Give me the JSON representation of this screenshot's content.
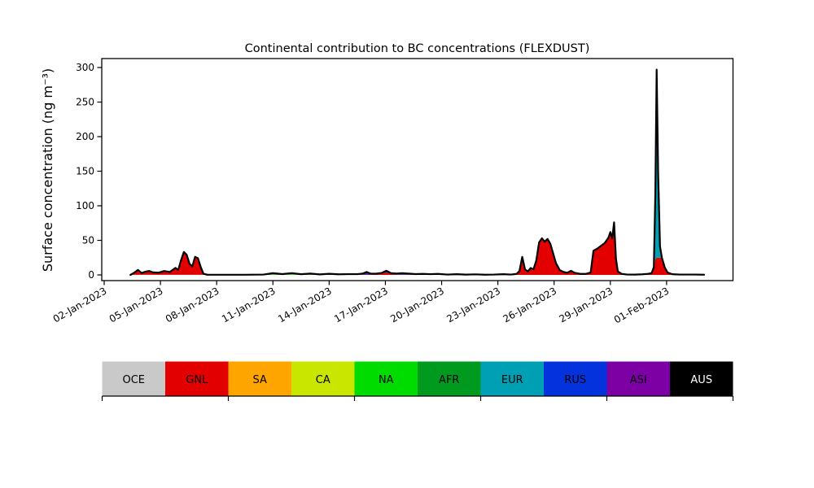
{
  "figure": {
    "background": "#ffffff",
    "frame_color": "#000000"
  },
  "chart_data": {
    "type": "area",
    "stacked": true,
    "title": "Continental contribution to BC concentrations (FLEXDUST)",
    "xlabel": "",
    "ylabel": "Surface concentration (ng m⁻³)",
    "grid": false,
    "yticks": [
      0,
      50,
      100,
      150,
      200,
      250,
      300
    ],
    "ylim": [
      -8,
      313
    ],
    "xlim_days": [
      -0.15,
      33.55
    ],
    "x_unit": "days since 02-Jan-2023",
    "xticks": [
      {
        "day": 0,
        "label": "02-Jan-2023"
      },
      {
        "day": 3,
        "label": "05-Jan-2023"
      },
      {
        "day": 6,
        "label": "08-Jan-2023"
      },
      {
        "day": 9,
        "label": "11-Jan-2023"
      },
      {
        "day": 12,
        "label": "14-Jan-2023"
      },
      {
        "day": 15,
        "label": "17-Jan-2023"
      },
      {
        "day": 18,
        "label": "20-Jan-2023"
      },
      {
        "day": 21,
        "label": "23-Jan-2023"
      },
      {
        "day": 24,
        "label": "26-Jan-2023"
      },
      {
        "day": 27,
        "label": "29-Jan-2023"
      },
      {
        "day": 30,
        "label": "01-Feb-2023"
      }
    ],
    "total_line_color": "#000000",
    "x": [
      1.4,
      1.6,
      1.8,
      2.0,
      2.2,
      2.4,
      2.6,
      2.9,
      3.2,
      3.5,
      3.8,
      3.95,
      4.1,
      4.25,
      4.4,
      4.55,
      4.7,
      4.85,
      5.0,
      5.15,
      5.3,
      5.5,
      6.5,
      7.5,
      8.5,
      9.0,
      9.5,
      10.0,
      10.5,
      11.0,
      11.5,
      12.0,
      12.5,
      13.0,
      13.5,
      13.8,
      14.0,
      14.2,
      14.5,
      14.8,
      15.05,
      15.3,
      15.6,
      15.9,
      16.2,
      16.6,
      17.0,
      17.4,
      17.8,
      18.3,
      18.8,
      19.3,
      19.8,
      20.3,
      20.8,
      21.3,
      21.7,
      22.0,
      22.15,
      22.3,
      22.45,
      22.6,
      22.75,
      22.9,
      23.05,
      23.2,
      23.35,
      23.5,
      23.65,
      23.8,
      23.95,
      24.1,
      24.3,
      24.5,
      24.7,
      24.9,
      25.1,
      25.4,
      25.7,
      25.95,
      26.1,
      26.3,
      26.5,
      26.7,
      26.9,
      27.0,
      27.1,
      27.2,
      27.3,
      27.4,
      27.6,
      27.9,
      28.3,
      28.7,
      29.0,
      29.2,
      29.32,
      29.4,
      29.47,
      29.55,
      29.65,
      29.75,
      29.9,
      30.05,
      30.3,
      30.7,
      31.1,
      31.5,
      32.0
    ],
    "series": [
      {
        "name": "OCE",
        "color": "#c9c9c9",
        "values": {
          "1": 0.2,
          "2": 0.2,
          "3": 0.2,
          "4": 0.2,
          "5": 0.2,
          "6": 0.2,
          "7": 0.2,
          "8": 0.2,
          "9": 0.2,
          "10": 0.2,
          "11": 0.2,
          "12": 0.2,
          "13": 0.2,
          "14": 0.2,
          "15": 0.2,
          "16": 0.2,
          "17": 0.2,
          "18": 0.2,
          "19": 0.2,
          "20": 0.1
        }
      },
      {
        "name": "GNL",
        "color": "#e30000",
        "values": [
          0,
          3,
          7,
          2.5,
          4.5,
          5.5,
          3.5,
          3,
          5.5,
          4,
          10,
          7,
          21,
          33,
          29,
          16,
          12,
          26,
          24,
          11,
          1.5,
          0.3,
          0.2,
          0.2,
          0.2,
          0.3,
          0.2,
          0.3,
          0.2,
          0.3,
          0.2,
          0.2,
          0.2,
          0.3,
          0.3,
          0.5,
          0.8,
          0.5,
          1,
          2,
          3.5,
          1.5,
          0.5,
          0.5,
          0.5,
          0.4,
          0.5,
          0.8,
          1,
          0.5,
          0.4,
          0.4,
          0.3,
          0.3,
          0.5,
          1,
          0.5,
          1.5,
          5,
          24,
          8,
          5,
          10,
          8,
          20,
          46,
          53,
          48,
          52,
          45,
          31,
          16,
          6,
          3.5,
          3,
          6,
          3,
          1.5,
          1.5,
          3.5,
          34,
          38,
          42,
          46,
          54,
          62,
          53,
          74,
          23,
          5,
          1.5,
          0.5,
          0.4,
          0.4,
          0.5,
          2,
          9,
          22,
          25,
          25,
          25,
          24,
          11,
          3.5,
          1,
          0.5,
          0.5,
          0.5,
          0.3
        ]
      },
      {
        "name": "SA",
        "color": "#ffa500",
        "values": {}
      },
      {
        "name": "CA",
        "color": "#c8e600",
        "values": {}
      },
      {
        "name": "NA",
        "color": "#00dc00",
        "values": {
          "24": 0.3,
          "25": 1.5,
          "26": 1,
          "27": 1.2,
          "28": 0.8,
          "29": 1,
          "30": 0.5,
          "31": 0.6,
          "32": 0.3,
          "72": 1,
          "73": 0.8,
          "93": 0.5,
          "94": 0.5
        }
      },
      {
        "name": "AFR",
        "color": "#009a1e",
        "values": {
          "25": 0.7,
          "27": 0.8,
          "29": 0.6,
          "31": 0.3,
          "64": 1,
          "65": 1,
          "71": 1,
          "94": 0.5
        }
      },
      {
        "name": "EUR",
        "color": "#00a0b4",
        "values": {
          "27": 0.3,
          "31": 0.5,
          "58": 0.5,
          "59": 2,
          "80": 1,
          "95": 0.5,
          "96": 2,
          "97": 85,
          "98": 232,
          "99": 110,
          "100": 16,
          "101": 1
        }
      },
      {
        "name": "RUS",
        "color": "#0433dd",
        "values": {
          "32": 0.4,
          "33": 0.8,
          "34": 0.8,
          "35": 1.5,
          "36": 3.5,
          "37": 1.5,
          "38": 0.8,
          "39": 0.8,
          "40": 2.5,
          "41": 1,
          "42": 1.5,
          "43": 2,
          "44": 1.5,
          "45": 0.8,
          "46": 1,
          "47": 0.3,
          "48": 0.5,
          "50": 0.6,
          "52": 0.5,
          "87": 2,
          "97": 10,
          "98": 38,
          "99": 12
        }
      },
      {
        "name": "ASI",
        "color": "#7d00a5",
        "values": {
          "98": 2
        }
      },
      {
        "name": "AUS",
        "color": "#000000",
        "values": {}
      }
    ]
  },
  "legend": {
    "items": [
      {
        "label": "OCE",
        "color": "#c9c9c9",
        "text_color": "#000000"
      },
      {
        "label": "GNL",
        "color": "#e30000",
        "text_color": "#000000"
      },
      {
        "label": "SA",
        "color": "#ffa500",
        "text_color": "#000000"
      },
      {
        "label": "CA",
        "color": "#c8e600",
        "text_color": "#000000"
      },
      {
        "label": "NA",
        "color": "#00dc00",
        "text_color": "#000000"
      },
      {
        "label": "AFR",
        "color": "#009a1e",
        "text_color": "#000000"
      },
      {
        "label": "EUR",
        "color": "#00a0b4",
        "text_color": "#000000"
      },
      {
        "label": "RUS",
        "color": "#0433dd",
        "text_color": "#000000"
      },
      {
        "label": "ASI",
        "color": "#7d00a5",
        "text_color": "#000000"
      },
      {
        "label": "AUS",
        "color": "#000000",
        "text_color": "#ffffff"
      }
    ]
  }
}
